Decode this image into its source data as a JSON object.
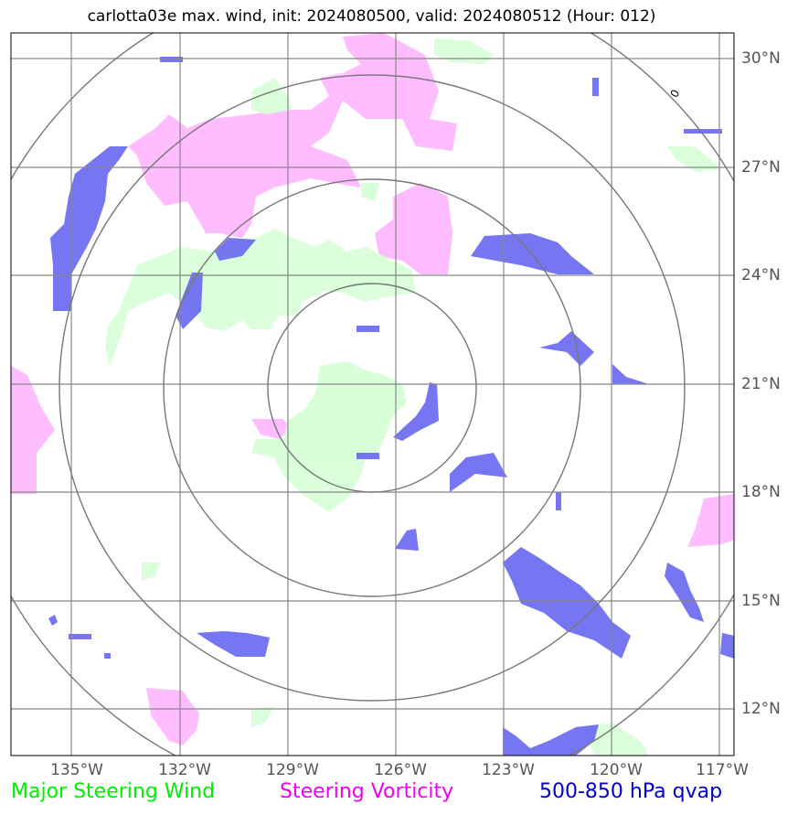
{
  "title": "carlotta03e max. wind, init: 2024080500, valid: 2024080512 (Hour: 012)",
  "lon_labels": [
    "135°W",
    "132°W",
    "129°W",
    "126°W",
    "123°W",
    "120°W",
    "117°W"
  ],
  "lat_labels": [
    "30°N",
    "27°N",
    "24°N",
    "21°N",
    "18°N",
    "15°N",
    "12°N"
  ],
  "legend": {
    "wind": "Major Steering Wind",
    "vorticity": "Steering Vorticity",
    "qvap": "500-850 hPa qvap"
  },
  "colors": {
    "wind": "#00ee00",
    "vorticity": "#ee00ee",
    "qvap": "#0000cc",
    "wind_fill": "#d8ffd8",
    "vorticity_fill": "#ffb8ff",
    "qvap_fill": "#6f6ff2",
    "grid": "#888888",
    "ring": "#777777"
  },
  "center_label": "0"
}
